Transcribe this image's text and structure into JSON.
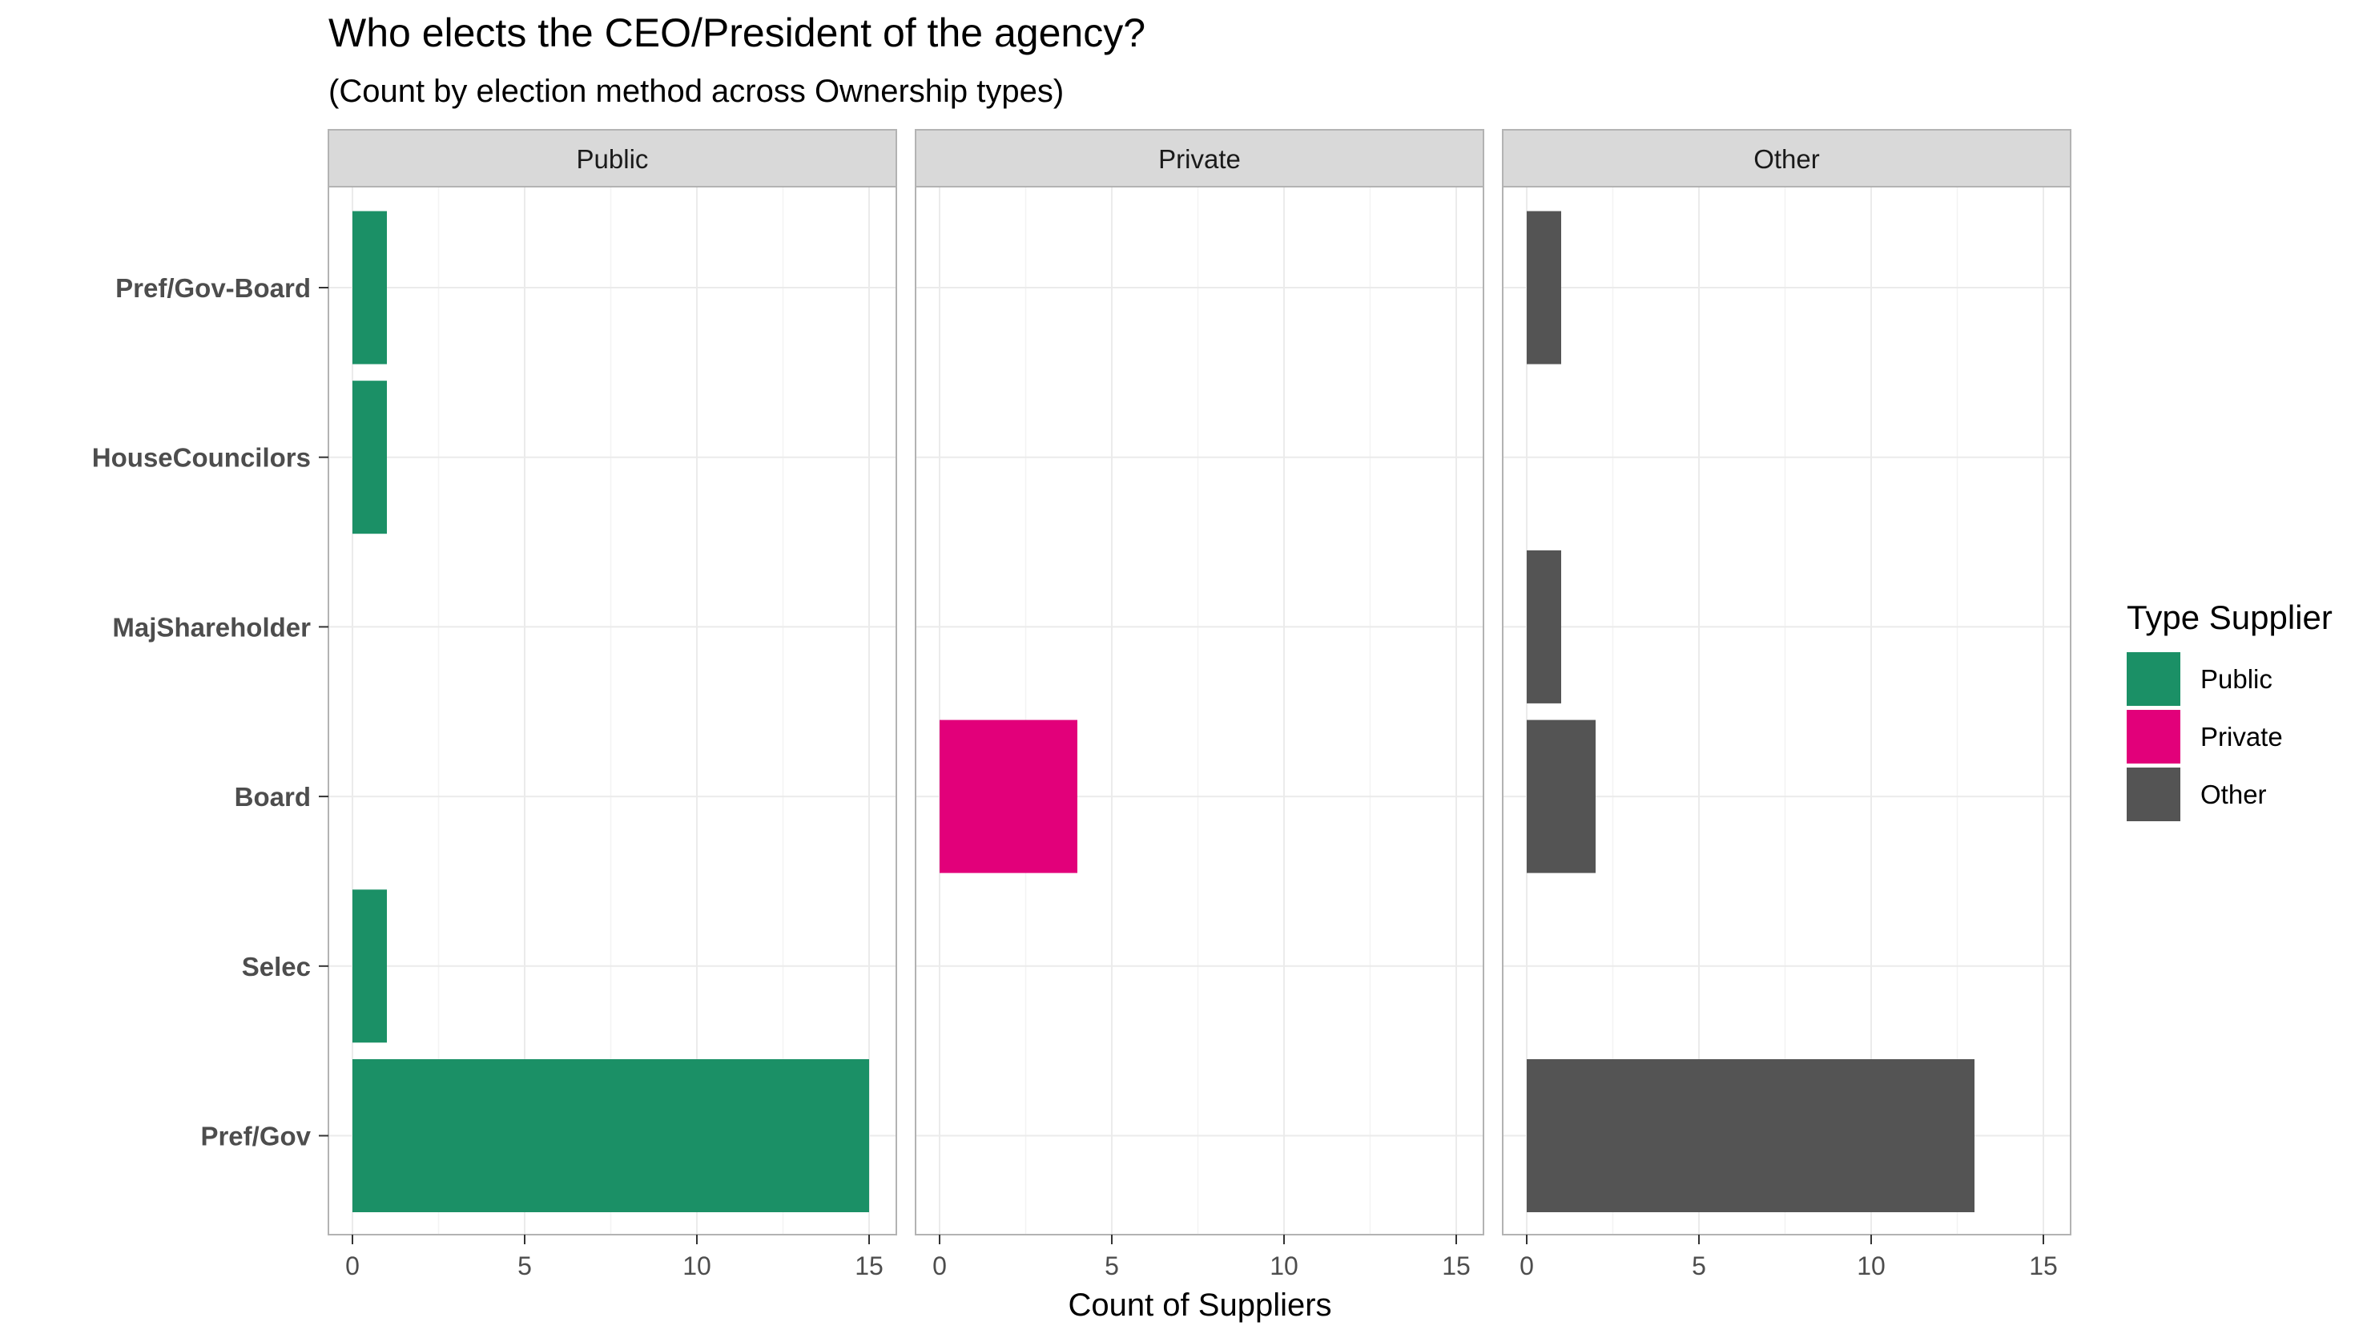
{
  "chart_data": {
    "type": "bar",
    "orientation": "horizontal",
    "title": "Who elects the CEO/President of the agency?",
    "subtitle": "(Count by election method across Ownership types)",
    "xlabel": "Count of Suppliers",
    "ylabel": "",
    "categories": [
      "Pref/Gov-Board",
      "HouseCouncilors",
      "MajShareholder",
      "Board",
      "Selec",
      "Pref/Gov"
    ],
    "xlim": [
      0,
      15
    ],
    "x_ticks": [
      0,
      5,
      10,
      15
    ],
    "grid": true,
    "legend": {
      "title": "Type Supplier",
      "position": "right",
      "entries": [
        "Public",
        "Private",
        "Other"
      ]
    },
    "panels": [
      {
        "name": "Public",
        "color": "#1b9066",
        "values": [
          1,
          1,
          0,
          0,
          1,
          15
        ]
      },
      {
        "name": "Private",
        "color": "#e2007a",
        "values": [
          0,
          0,
          0,
          4,
          0,
          0
        ]
      },
      {
        "name": "Other",
        "color": "#545454",
        "values": [
          1,
          0,
          1,
          2,
          0,
          13
        ]
      }
    ]
  }
}
